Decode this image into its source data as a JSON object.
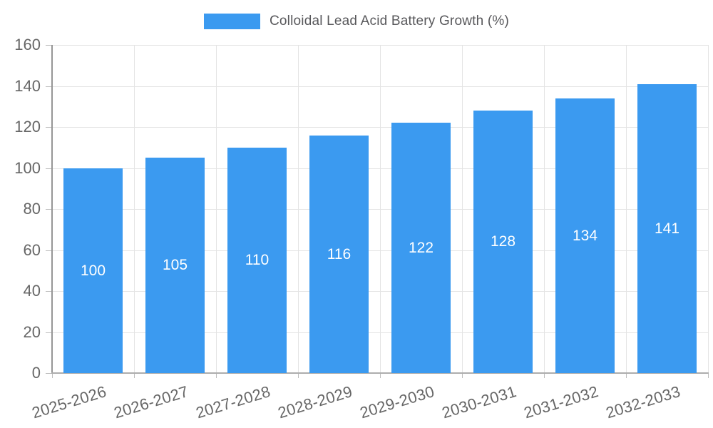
{
  "colors": {
    "bar": "#3B9AF0",
    "grid": "#E4E4E4",
    "y_axis_line": "#969696",
    "x_axis_line": "#ADADAD",
    "tick_mark": "#BDBDBD",
    "axis_text": "#666666",
    "legend_text": "#58585B",
    "bar_label_text": "#FFFFFF",
    "background": "#FFFFFF"
  },
  "chart_data": {
    "type": "bar",
    "title": "",
    "xlabel": "",
    "ylabel": "",
    "categories": [
      "2025-2026",
      "2026-2027",
      "2027-2028",
      "2028-2029",
      "2029-2030",
      "2030-2031",
      "2031-2032",
      "2032-2033"
    ],
    "series": [
      {
        "name": "Colloidal Lead Acid Battery Growth (%)",
        "color": "#3B9AF0",
        "values": [
          100,
          105,
          110,
          116,
          122,
          128,
          134,
          141
        ]
      }
    ],
    "ylim": [
      0,
      160
    ],
    "yticks": [
      0,
      20,
      40,
      60,
      80,
      100,
      120,
      140,
      160
    ],
    "grid": true,
    "legend_position": "top",
    "value_label_position": "inside-middle",
    "x_label_rotation_deg": -17
  }
}
